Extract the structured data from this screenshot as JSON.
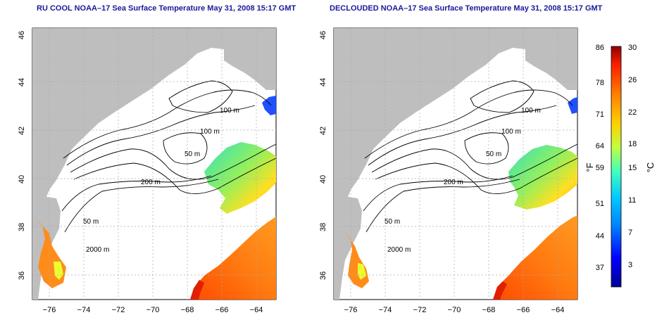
{
  "titles": {
    "left": "RU COOL NOAA–17 Sea Surface Temperature May 31, 2008 15:17 GMT",
    "right": "DECLOUDED NOAA–17 Sea Surface Temperature May 31, 2008 15:17 GMT"
  },
  "axes": {
    "lat_ticks": [
      "46",
      "44",
      "42",
      "40",
      "38",
      "36"
    ],
    "lon_ticks": [
      "−76",
      "−74",
      "−72",
      "−70",
      "−68",
      "−66",
      "−64"
    ]
  },
  "contours": {
    "label_100m": "100 m",
    "label_100m_b": "100 m",
    "label_50m": "50 m",
    "label_200m": "200 m",
    "label_50m_b": "50 m",
    "label_2000m": "2000 m"
  },
  "colorbar": {
    "f_ticks": [
      "86",
      "78",
      "71",
      "64",
      "59",
      "51",
      "44",
      "37"
    ],
    "c_ticks": [
      "30",
      "26",
      "22",
      "18",
      "15",
      "11",
      "7",
      "3"
    ],
    "f_unit": "°F",
    "c_unit": "°C",
    "colors": [
      "#000096",
      "#0000ff",
      "#0080ff",
      "#00c8ff",
      "#40ffbf",
      "#c0ff40",
      "#ffd000",
      "#ff8000",
      "#ff2000",
      "#900000"
    ]
  },
  "colors": {
    "land": "#bebebe",
    "ocean": "#ffffff",
    "grid": "#aaaaaa",
    "title": "#1a1a9a"
  }
}
